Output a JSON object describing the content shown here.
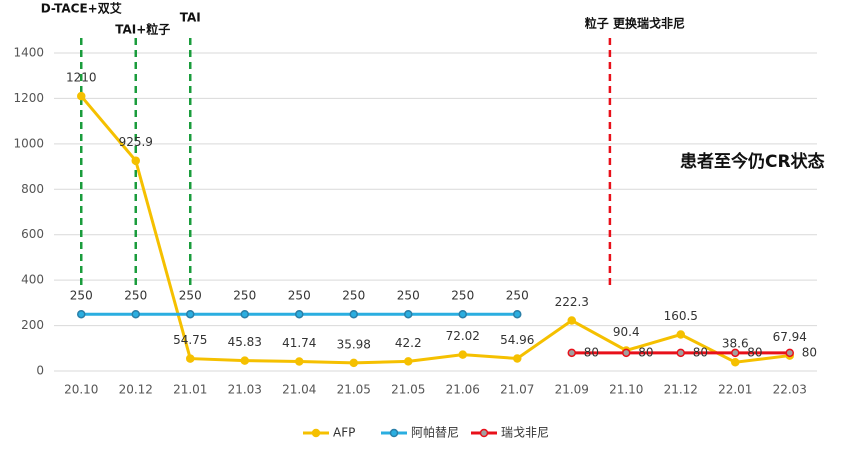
{
  "chart_data": {
    "type": "line",
    "categories": [
      "20.10",
      "20.12",
      "21.01",
      "21.03",
      "21.04",
      "21.05",
      "21.05",
      "21.06",
      "21.07",
      "21.09",
      "21.10",
      "21.12",
      "22.01",
      "22.03"
    ],
    "series": [
      {
        "name": "AFP",
        "color": "#f5c000",
        "values": [
          1210,
          925.9,
          54.75,
          45.83,
          41.74,
          35.98,
          42.2,
          72.02,
          54.96,
          222.3,
          90.4,
          160.5,
          38.6,
          67.94
        ]
      },
      {
        "name": "阿帕替尼",
        "color": "#2aaee0",
        "values": [
          250,
          250,
          250,
          250,
          250,
          250,
          250,
          250,
          250,
          null,
          null,
          null,
          null,
          null
        ]
      },
      {
        "name": "瑞戈非尼",
        "color": "#e8101a",
        "values": [
          null,
          null,
          null,
          null,
          null,
          null,
          null,
          null,
          null,
          80,
          80,
          80,
          80,
          80
        ]
      }
    ],
    "ylim": [
      0,
      1400
    ],
    "yticks": [
      0,
      200,
      400,
      600,
      800,
      1000,
      1200,
      1400
    ],
    "grid": true,
    "legend": "bottom",
    "annotations": [
      {
        "text": "D-TACE+双艾",
        "color": "#1a9c3c"
      },
      {
        "text": "TAI+粒子",
        "color": "#1a9c3c"
      },
      {
        "text": "TAI",
        "color": "#1a9c3c"
      },
      {
        "text": "粒子 更换瑞戈非尼",
        "color": "#e8101a"
      }
    ],
    "note": "患者至今仍CR状态"
  }
}
